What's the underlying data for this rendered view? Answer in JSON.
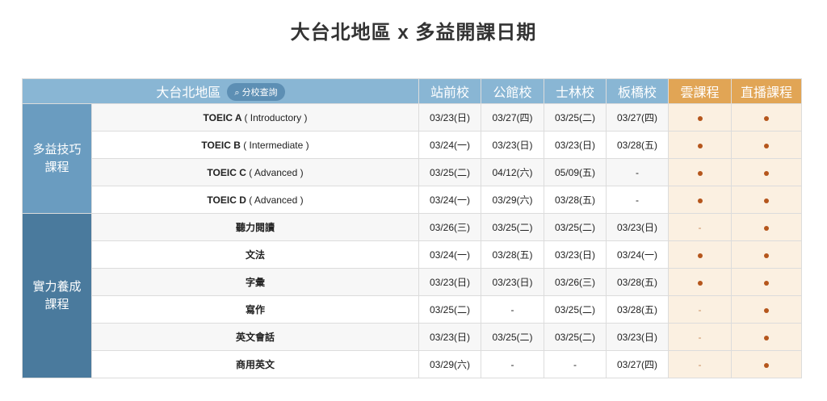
{
  "title": "大台北地區 x 多益開課日期",
  "header": {
    "region": "大台北地區",
    "branch_query": "分校查詢",
    "columns": [
      "站前校",
      "公館校",
      "士林校",
      "板橋校",
      "雲課程",
      "直播課程"
    ]
  },
  "colors": {
    "header": "#89b6d4",
    "online_header": "#e1a555",
    "group1": "#6a9cc0",
    "group2": "#4a7a9d",
    "dot": "#b5561c"
  },
  "groups": [
    {
      "label_line1": "多益技巧",
      "label_line2": "課程",
      "rows": [
        {
          "course": "TOEIC A",
          "sub": "( Introductory )",
          "dates": [
            "03/23(日)",
            "03/27(四)",
            "03/25(二)",
            "03/27(四)"
          ],
          "cloud": "●",
          "live": "●"
        },
        {
          "course": "TOEIC B",
          "sub": "( Intermediate )",
          "dates": [
            "03/24(一)",
            "03/23(日)",
            "03/23(日)",
            "03/28(五)"
          ],
          "cloud": "●",
          "live": "●"
        },
        {
          "course": "TOEIC C",
          "sub": "( Advanced )",
          "dates": [
            "03/25(二)",
            "04/12(六)",
            "05/09(五)",
            "-"
          ],
          "cloud": "●",
          "live": "●"
        },
        {
          "course": "TOEIC D",
          "sub": "( Advanced )",
          "dates": [
            "03/24(一)",
            "03/29(六)",
            "03/28(五)",
            "-"
          ],
          "cloud": "●",
          "live": "●"
        }
      ]
    },
    {
      "label_line1": "實力養成",
      "label_line2": "課程",
      "rows": [
        {
          "course": "聽力閱讀",
          "sub": "",
          "dates": [
            "03/26(三)",
            "03/25(二)",
            "03/25(二)",
            "03/23(日)"
          ],
          "cloud": "-",
          "live": "●"
        },
        {
          "course": "文法",
          "sub": "",
          "dates": [
            "03/24(一)",
            "03/28(五)",
            "03/23(日)",
            "03/24(一)"
          ],
          "cloud": "●",
          "live": "●"
        },
        {
          "course": "字彙",
          "sub": "",
          "dates": [
            "03/23(日)",
            "03/23(日)",
            "03/26(三)",
            "03/28(五)"
          ],
          "cloud": "●",
          "live": "●"
        },
        {
          "course": "寫作",
          "sub": "",
          "dates": [
            "03/25(二)",
            "-",
            "03/25(二)",
            "03/28(五)"
          ],
          "cloud": "-",
          "live": "●"
        },
        {
          "course": "英文會話",
          "sub": "",
          "dates": [
            "03/23(日)",
            "03/25(二)",
            "03/25(二)",
            "03/23(日)"
          ],
          "cloud": "-",
          "live": "●"
        },
        {
          "course": "商用英文",
          "sub": "",
          "dates": [
            "03/29(六)",
            "-",
            "-",
            "03/27(四)"
          ],
          "cloud": "-",
          "live": "●"
        }
      ]
    }
  ]
}
